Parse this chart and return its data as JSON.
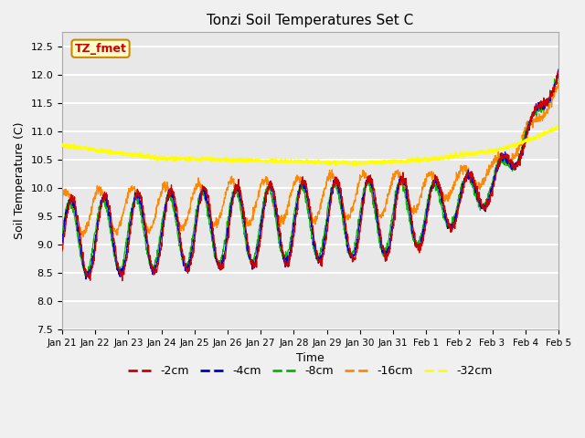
{
  "title": "Tonzi Soil Temperatures Set C",
  "xlabel": "Time",
  "ylabel": "Soil Temperature (C)",
  "ylim": [
    7.5,
    12.75
  ],
  "yticks": [
    7.5,
    8.0,
    8.5,
    9.0,
    9.5,
    10.0,
    10.5,
    11.0,
    11.5,
    12.0,
    12.5
  ],
  "xtick_labels": [
    "Jan 21",
    "Jan 22",
    "Jan 23",
    "Jan 24",
    "Jan 25",
    "Jan 26",
    "Jan 27",
    "Jan 28",
    "Jan 29",
    "Jan 30",
    "Jan 31",
    "Feb 1",
    "Feb 2",
    "Feb 3",
    "Feb 4",
    "Feb 5"
  ],
  "colors": {
    "-2cm": "#cc0000",
    "-4cm": "#0000cc",
    "-8cm": "#00bb00",
    "-16cm": "#ff8800",
    "-32cm": "#ffff00"
  },
  "legend_label": "TZ_fmet",
  "legend_box_color": "#ffffcc",
  "legend_box_edge": "#cc8800",
  "plot_bg": "#e8e8e8",
  "fig_bg": "#f0f0f0",
  "grid_color": "#ffffff",
  "n_points": 2000
}
